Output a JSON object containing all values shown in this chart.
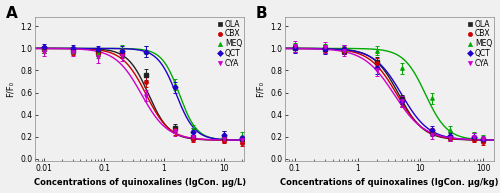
{
  "panel_A": {
    "label": "A",
    "xlabel": "Concentrations of quinoxalines (lgCon. μg/L)",
    "xlim": [
      0.007,
      22
    ],
    "xticks": [
      0.01,
      0.1,
      1,
      10
    ],
    "xticklabels": [
      "0.01",
      "0.1",
      "1",
      "10"
    ]
  },
  "panel_B": {
    "label": "B",
    "xlabel": "Concentrations of quinoxalines (lgCon. μg/kg)",
    "xlim": [
      0.07,
      150
    ],
    "xticks": [
      0.1,
      1,
      10,
      100
    ],
    "xticklabels": [
      "0.1",
      "1",
      "10",
      "100"
    ]
  },
  "ylabel": "F/F₀",
  "ylim": [
    -0.02,
    1.28
  ],
  "yticks": [
    0.0,
    0.2,
    0.4,
    0.6,
    0.8,
    1.0,
    1.2
  ],
  "series": [
    {
      "name": "OLA",
      "color": "#222222",
      "marker": "s",
      "A_x": [
        0.01,
        0.03,
        0.08,
        0.2,
        0.5,
        1.5,
        3,
        10,
        20
      ],
      "A_y": [
        0.99,
        0.98,
        0.97,
        0.96,
        0.76,
        0.28,
        0.2,
        0.19,
        0.18
      ],
      "A_yerr": [
        0.03,
        0.03,
        0.03,
        0.04,
        0.05,
        0.04,
        0.03,
        0.02,
        0.02
      ],
      "A_ic50": 0.55,
      "A_hill": 2.5,
      "B_x": [
        0.1,
        0.3,
        0.6,
        2,
        5,
        15,
        30,
        70,
        100
      ],
      "B_y": [
        1.0,
        0.99,
        0.98,
        0.88,
        0.54,
        0.24,
        0.2,
        0.19,
        0.17
      ],
      "B_yerr": [
        0.03,
        0.03,
        0.03,
        0.04,
        0.04,
        0.03,
        0.03,
        0.02,
        0.02
      ],
      "B_ic50": 4.5,
      "B_hill": 2.2
    },
    {
      "name": "CBX",
      "color": "#cc0000",
      "marker": "o",
      "A_x": [
        0.01,
        0.03,
        0.08,
        0.2,
        0.5,
        1.5,
        3,
        10,
        20
      ],
      "A_y": [
        0.99,
        0.97,
        0.96,
        0.95,
        0.7,
        0.26,
        0.18,
        0.16,
        0.14
      ],
      "A_yerr": [
        0.03,
        0.03,
        0.03,
        0.04,
        0.05,
        0.04,
        0.03,
        0.02,
        0.02
      ],
      "A_ic50": 0.5,
      "A_hill": 2.2,
      "B_x": [
        0.1,
        0.3,
        0.6,
        2,
        5,
        15,
        30,
        70,
        100
      ],
      "B_y": [
        1.0,
        1.0,
        0.98,
        0.87,
        0.52,
        0.25,
        0.19,
        0.17,
        0.15
      ],
      "B_yerr": [
        0.03,
        0.03,
        0.03,
        0.04,
        0.04,
        0.03,
        0.03,
        0.02,
        0.02
      ],
      "B_ic50": 4.2,
      "B_hill": 2.0
    },
    {
      "name": "MEQ",
      "color": "#00aa00",
      "marker": "^",
      "A_x": [
        0.01,
        0.03,
        0.08,
        0.2,
        0.5,
        1.5,
        3,
        10,
        20
      ],
      "A_y": [
        0.99,
        0.98,
        0.95,
        0.99,
        0.97,
        0.67,
        0.27,
        0.22,
        0.21
      ],
      "A_yerr": [
        0.03,
        0.03,
        0.04,
        0.04,
        0.05,
        0.05,
        0.04,
        0.03,
        0.03
      ],
      "A_ic50": 1.8,
      "A_hill": 3.0,
      "B_x": [
        0.1,
        0.3,
        0.6,
        2,
        5,
        15,
        30,
        70,
        100
      ],
      "B_y": [
        1.01,
        1.0,
        0.99,
        0.98,
        0.82,
        0.55,
        0.26,
        0.21,
        0.19
      ],
      "B_yerr": [
        0.04,
        0.04,
        0.03,
        0.04,
        0.05,
        0.05,
        0.04,
        0.03,
        0.03
      ],
      "B_ic50": 12.0,
      "B_hill": 2.5
    },
    {
      "name": "QCT",
      "color": "#2200cc",
      "marker": "D",
      "A_x": [
        0.01,
        0.03,
        0.08,
        0.2,
        0.5,
        1.5,
        3,
        10,
        20
      ],
      "A_y": [
        1.01,
        1.0,
        0.99,
        0.98,
        0.97,
        0.65,
        0.24,
        0.22,
        0.19
      ],
      "A_yerr": [
        0.03,
        0.03,
        0.03,
        0.04,
        0.05,
        0.05,
        0.04,
        0.03,
        0.02
      ],
      "A_ic50": 1.6,
      "A_hill": 2.8,
      "B_x": [
        0.1,
        0.3,
        0.6,
        2,
        5,
        15,
        30,
        70,
        100
      ],
      "B_y": [
        1.0,
        0.99,
        0.99,
        0.82,
        0.52,
        0.26,
        0.21,
        0.2,
        0.18
      ],
      "B_yerr": [
        0.04,
        0.04,
        0.04,
        0.05,
        0.05,
        0.04,
        0.03,
        0.03,
        0.02
      ],
      "B_ic50": 5.0,
      "B_hill": 2.0
    },
    {
      "name": "CYA",
      "color": "#cc00cc",
      "marker": "v",
      "A_x": [
        0.01,
        0.03,
        0.08,
        0.2,
        0.5,
        1.5,
        3,
        10,
        20
      ],
      "A_y": [
        0.97,
        0.97,
        0.92,
        0.93,
        0.57,
        0.25,
        0.2,
        0.18,
        0.17
      ],
      "A_yerr": [
        0.04,
        0.04,
        0.05,
        0.04,
        0.05,
        0.04,
        0.04,
        0.03,
        0.03
      ],
      "A_ic50": 0.42,
      "A_hill": 2.0,
      "B_x": [
        0.1,
        0.3,
        0.6,
        2,
        5,
        15,
        30,
        70,
        100
      ],
      "B_y": [
        1.02,
        1.01,
        0.98,
        0.8,
        0.52,
        0.22,
        0.19,
        0.2,
        0.18
      ],
      "B_yerr": [
        0.05,
        0.05,
        0.05,
        0.05,
        0.05,
        0.04,
        0.03,
        0.03,
        0.03
      ],
      "B_ic50": 3.8,
      "B_hill": 1.8
    }
  ],
  "background_color": "#f0f0f0",
  "tick_fontsize": 5.5,
  "label_fontsize": 6,
  "legend_fontsize": 5.5,
  "markersize": 2.5,
  "linewidth": 1.0,
  "capsize": 1.5,
  "elinewidth": 0.7
}
